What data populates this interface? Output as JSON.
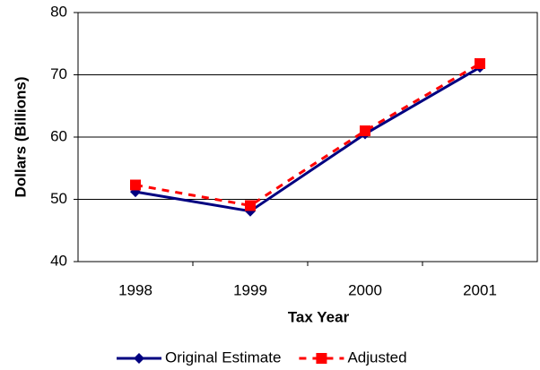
{
  "chart_data": {
    "type": "line",
    "x_label": "Tax Year",
    "y_label": "Dollars (Billions)",
    "categories": [
      "1998",
      "1999",
      "2000",
      "2001"
    ],
    "series": [
      {
        "name": "Original Estimate",
        "color": "#000080",
        "marker": "diamond",
        "dash": false,
        "values": [
          51.2,
          48.1,
          60.5,
          71.2
        ]
      },
      {
        "name": "Adjusted",
        "color": "#ff0000",
        "marker": "square",
        "dash": true,
        "values": [
          52.3,
          49.0,
          61.0,
          71.8
        ]
      }
    ],
    "ylim": [
      40,
      80
    ],
    "yticks": [
      40,
      50,
      60,
      70,
      80
    ],
    "grid": true,
    "legend": "bottom"
  }
}
